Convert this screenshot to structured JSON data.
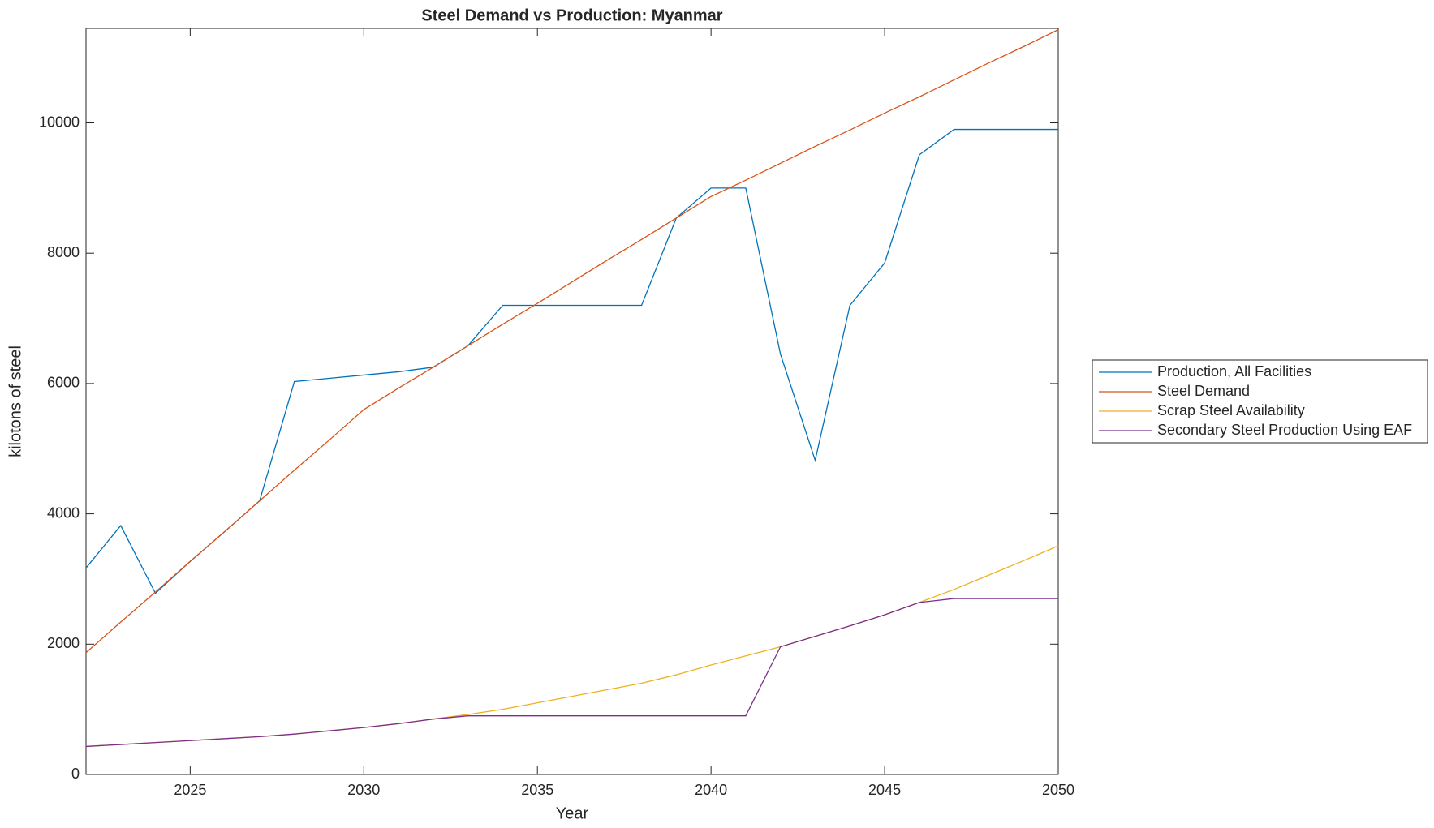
{
  "chart_data": {
    "type": "line",
    "title": "Steel Demand vs Production: Myanmar",
    "x_label": "Year",
    "y_label": "kilotons of steel",
    "x": [
      2022,
      2023,
      2024,
      2025,
      2026,
      2027,
      2028,
      2029,
      2030,
      2031,
      2032,
      2033,
      2034,
      2035,
      2036,
      2037,
      2038,
      2039,
      2040,
      2041,
      2042,
      2043,
      2044,
      2045,
      2046,
      2047,
      2048,
      2049,
      2050
    ],
    "series": [
      {
        "name": "Production, All Facilities",
        "color": "#0072bd",
        "values": [
          3170,
          3820,
          2780,
          3270,
          3730,
          4200,
          6030,
          6080,
          6130,
          6180,
          6250,
          6580,
          7200,
          7200,
          7200,
          7200,
          7200,
          8540,
          9000,
          9000,
          6450,
          4820,
          7200,
          7850,
          9510,
          9900,
          9900,
          9900,
          9900
        ]
      },
      {
        "name": "Steel Demand",
        "color": "#d95319",
        "values": [
          1870,
          2340,
          2800,
          3270,
          3730,
          4200,
          4670,
          5130,
          5600,
          5930,
          6250,
          6580,
          6910,
          7230,
          7560,
          7890,
          8210,
          8540,
          8870,
          9120,
          9380,
          9640,
          9890,
          10150,
          10400,
          10660,
          10920,
          11170,
          11430
        ]
      },
      {
        "name": "Scrap Steel Availability",
        "color": "#edb120",
        "values": [
          430,
          460,
          490,
          520,
          550,
          580,
          620,
          670,
          720,
          780,
          850,
          920,
          1000,
          1100,
          1200,
          1300,
          1400,
          1530,
          1680,
          1820,
          1960,
          2120,
          2280,
          2450,
          2640,
          2840,
          3060,
          3280,
          3510
        ]
      },
      {
        "name": "Secondary Steel Production Using EAF",
        "color": "#7e2f8e",
        "values": [
          430,
          460,
          490,
          520,
          550,
          580,
          620,
          670,
          720,
          780,
          850,
          900,
          900,
          900,
          900,
          900,
          900,
          900,
          900,
          900,
          1960,
          2120,
          2280,
          2450,
          2640,
          2700,
          2700,
          2700,
          2700
        ]
      }
    ],
    "xlim": [
      2022,
      2050
    ],
    "xticks": [
      2025,
      2030,
      2035,
      2040,
      2045,
      2050
    ],
    "ylim": [
      0,
      11450
    ],
    "yticks": [
      0,
      2000,
      4000,
      6000,
      8000,
      10000
    ],
    "legend": "outside-right"
  }
}
